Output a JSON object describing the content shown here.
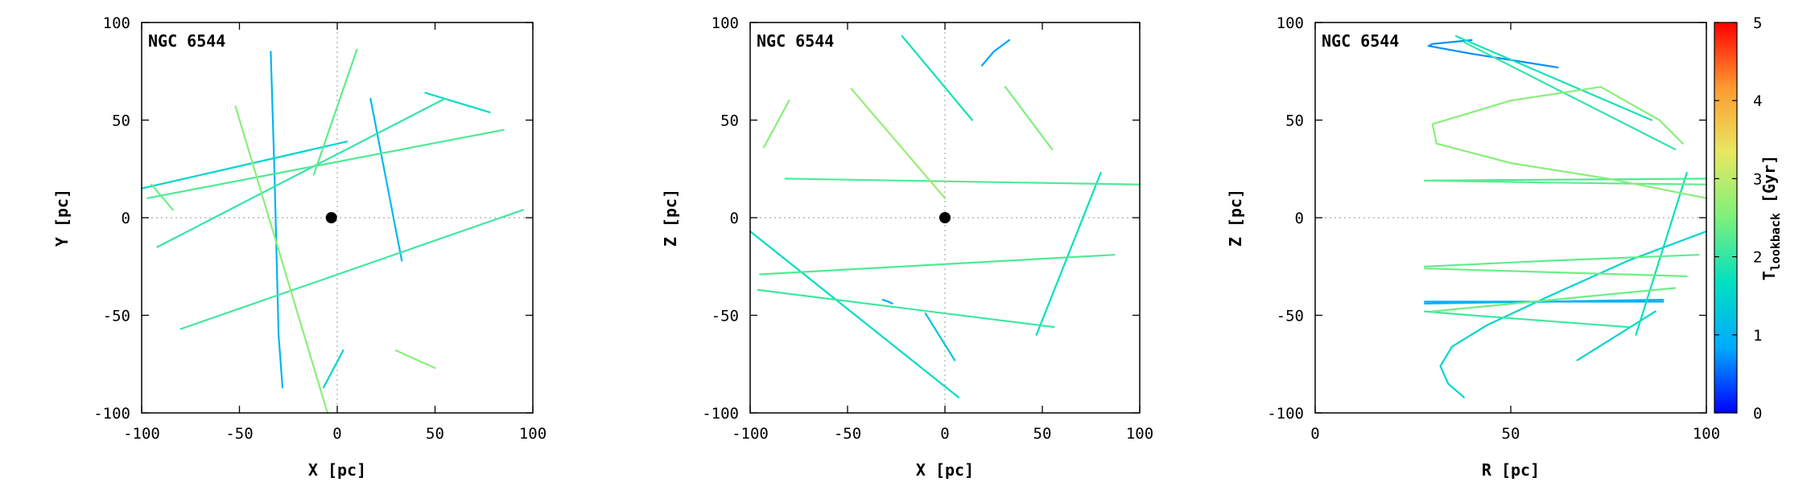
{
  "cmap_stops": [
    "#0000ff",
    "#00aaff",
    "#00e0c0",
    "#7cf07c",
    "#e8e860",
    "#ff9a30",
    "#ff0000"
  ],
  "colorbar": {
    "label_main": "T",
    "label_sub": "lookback",
    "label_unit": " [Gyr]",
    "min": 0,
    "max": 5,
    "ticks": [
      "0",
      "1",
      "2",
      "3",
      "4",
      "5"
    ]
  },
  "chart_data": [
    {
      "type": "line",
      "label": "NGC 6544",
      "xlabel": "X [pc]",
      "ylabel": "Y [pc]",
      "xlim": [
        -100,
        100
      ],
      "ylim": [
        -100,
        100
      ],
      "xticks": [
        "-100",
        "-50",
        "0",
        "50",
        "100"
      ],
      "yticks": [
        "-100",
        "-50",
        "0",
        "50",
        "100"
      ],
      "grid": "dotted zero lines",
      "marker": {
        "x": -3,
        "y": 0
      },
      "series": [
        {
          "t": 1.0,
          "points": [
            [
              -34,
              85
            ],
            [
              -32,
              20
            ],
            [
              -30,
              -60
            ],
            [
              -28,
              -87
            ]
          ]
        },
        {
          "t": 1.1,
          "points": [
            [
              17,
              61
            ],
            [
              33,
              -22
            ]
          ]
        },
        {
          "t": 1.5,
          "points": [
            [
              -100,
              15
            ],
            [
              5,
              39
            ]
          ]
        },
        {
          "t": 1.5,
          "points": [
            [
              -7,
              -87
            ],
            [
              3,
              -68
            ]
          ]
        },
        {
          "t": 1.6,
          "points": [
            [
              45,
              64
            ],
            [
              78,
              54
            ]
          ]
        },
        {
          "t": 2.0,
          "points": [
            [
              -92,
              -15
            ],
            [
              55,
              61
            ]
          ]
        },
        {
          "t": 2.1,
          "points": [
            [
              -80,
              -57
            ],
            [
              95,
              4
            ]
          ]
        },
        {
          "t": 2.2,
          "points": [
            [
              -97,
              10
            ],
            [
              85,
              45
            ]
          ]
        },
        {
          "t": 2.3,
          "points": [
            [
              -12,
              22
            ],
            [
              10,
              86
            ]
          ]
        },
        {
          "t": 2.4,
          "points": [
            [
              -95,
              17
            ],
            [
              -84,
              4
            ]
          ]
        },
        {
          "t": 2.6,
          "points": [
            [
              -52,
              57
            ],
            [
              -5,
              -100
            ]
          ]
        },
        {
          "t": 2.6,
          "points": [
            [
              30,
              -68
            ],
            [
              50,
              -77
            ]
          ]
        }
      ]
    },
    {
      "type": "line",
      "label": "NGC 6544",
      "xlabel": "X [pc]",
      "ylabel": "Z [pc]",
      "xlim": [
        -100,
        100
      ],
      "ylim": [
        -100,
        100
      ],
      "xticks": [
        "-100",
        "-50",
        "0",
        "50",
        "100"
      ],
      "yticks": [
        "-100",
        "-50",
        "0",
        "50",
        "100"
      ],
      "grid": "dotted zero lines",
      "marker": {
        "x": 0,
        "y": 0
      },
      "series": [
        {
          "t": 0.8,
          "points": [
            [
              19,
              78
            ],
            [
              25,
              85
            ],
            [
              33,
              91
            ]
          ]
        },
        {
          "t": 0.9,
          "points": [
            [
              -32,
              -42
            ],
            [
              -29,
              -43
            ],
            [
              -27,
              -44
            ]
          ]
        },
        {
          "t": 1.2,
          "points": [
            [
              -10,
              -49
            ],
            [
              5,
              -73
            ]
          ]
        },
        {
          "t": 1.6,
          "points": [
            [
              -100,
              -7
            ],
            [
              7,
              -92
            ]
          ]
        },
        {
          "t": 1.7,
          "points": [
            [
              47,
              -60
            ],
            [
              80,
              23
            ]
          ]
        },
        {
          "t": 1.8,
          "points": [
            [
              -22,
              93
            ],
            [
              14,
              50
            ]
          ]
        },
        {
          "t": 2.1,
          "points": [
            [
              -96,
              -37
            ],
            [
              56,
              -56
            ]
          ]
        },
        {
          "t": 2.2,
          "points": [
            [
              -95,
              -29
            ],
            [
              87,
              -19
            ]
          ]
        },
        {
          "t": 2.2,
          "points": [
            [
              -82,
              20
            ],
            [
              100,
              17
            ]
          ]
        },
        {
          "t": 2.5,
          "points": [
            [
              31,
              67
            ],
            [
              55,
              35
            ]
          ]
        },
        {
          "t": 2.6,
          "points": [
            [
              -93,
              36
            ],
            [
              -80,
              60
            ]
          ]
        },
        {
          "t": 2.7,
          "points": [
            [
              -48,
              66
            ],
            [
              0,
              10
            ]
          ]
        }
      ]
    },
    {
      "type": "line",
      "label": "NGC 6544",
      "xlabel": "R [pc]",
      "ylabel": "Z [pc]",
      "xlim": [
        0,
        100
      ],
      "ylim": [
        -100,
        100
      ],
      "xticks": [
        "0",
        "50",
        "100"
      ],
      "yticks": [
        "-100",
        "-50",
        "0",
        "50",
        "100"
      ],
      "grid": "dotted zero line",
      "series": [
        {
          "t": 0.7,
          "points": [
            [
              40,
              91
            ],
            [
              30,
              89
            ],
            [
              29,
              88
            ],
            [
              40,
              84
            ],
            [
              62,
              77
            ]
          ]
        },
        {
          "t": 0.9,
          "points": [
            [
              28,
              -43
            ],
            [
              60,
              -43
            ],
            [
              89,
              -43
            ]
          ]
        },
        {
          "t": 1.0,
          "points": [
            [
              28,
              -44
            ],
            [
              89,
              -42
            ]
          ]
        },
        {
          "t": 1.5,
          "points": [
            [
              67,
              -73
            ],
            [
              87,
              -48
            ]
          ]
        },
        {
          "t": 1.5,
          "points": [
            [
              38,
              -92
            ],
            [
              34,
              -85
            ],
            [
              32,
              -76
            ],
            [
              35,
              -66
            ],
            [
              44,
              -55
            ],
            [
              60,
              -40
            ],
            [
              80,
              -22
            ],
            [
              100,
              -7
            ]
          ]
        },
        {
          "t": 1.7,
          "points": [
            [
              82,
              -60
            ],
            [
              95,
              23
            ]
          ]
        },
        {
          "t": 1.8,
          "points": [
            [
              36,
              93
            ],
            [
              86,
              50
            ]
          ]
        },
        {
          "t": 2.0,
          "points": [
            [
              38,
              90
            ],
            [
              92,
              35
            ]
          ]
        },
        {
          "t": 2.1,
          "points": [
            [
              28,
              -48
            ],
            [
              40,
              -50
            ],
            [
              60,
              -53
            ],
            [
              80,
              -56
            ]
          ]
        },
        {
          "t": 2.2,
          "points": [
            [
              28,
              19
            ],
            [
              100,
              20
            ]
          ]
        },
        {
          "t": 2.3,
          "points": [
            [
              28,
              19
            ],
            [
              60,
              18
            ],
            [
              100,
              17
            ]
          ]
        },
        {
          "t": 2.3,
          "points": [
            [
              28,
              -25
            ],
            [
              60,
              -22
            ],
            [
              98,
              -19
            ]
          ]
        },
        {
          "t": 2.4,
          "points": [
            [
              28,
              -26
            ],
            [
              95,
              -30
            ]
          ]
        },
        {
          "t": 2.4,
          "points": [
            [
              30,
              -48
            ],
            [
              92,
              -36
            ]
          ]
        },
        {
          "t": 2.6,
          "points": [
            [
              94,
              38
            ],
            [
              88,
              50
            ],
            [
              73,
              67
            ],
            [
              50,
              60
            ],
            [
              30,
              48
            ],
            [
              31,
              38
            ],
            [
              50,
              28
            ],
            [
              75,
              20
            ],
            [
              100,
              10
            ]
          ]
        }
      ]
    }
  ]
}
